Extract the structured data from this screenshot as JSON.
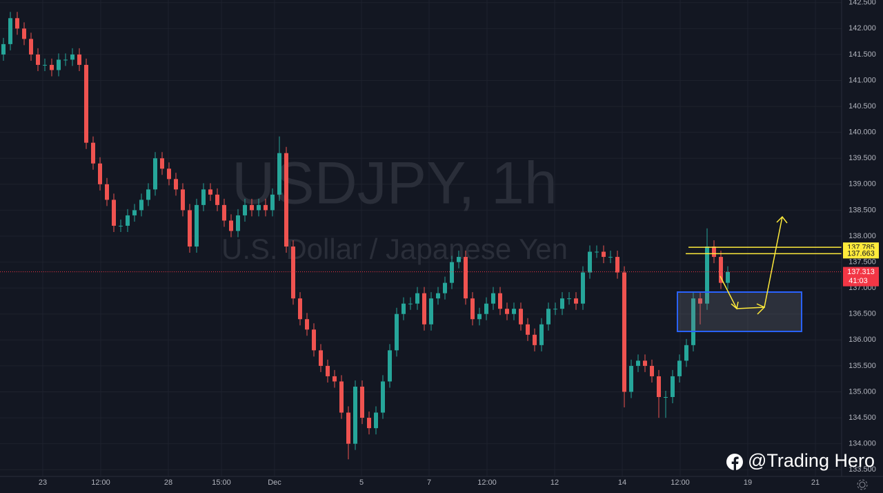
{
  "chart_data": {
    "type": "candlestick",
    "title": "USDJPY, 1h",
    "subtitle": "U.S. Dollar / Japanese Yen",
    "credit": "@Trading Hero",
    "up_color": "#26a69a",
    "down_color": "#ef5350",
    "grid": true,
    "ohlc": [
      [
        141.5,
        141.82,
        141.38,
        141.7
      ],
      [
        141.7,
        142.32,
        141.58,
        142.2
      ],
      [
        142.2,
        142.32,
        141.88,
        142.0
      ],
      [
        142.0,
        142.12,
        141.68,
        141.8
      ],
      [
        141.8,
        141.92,
        141.38,
        141.5
      ],
      [
        141.5,
        141.62,
        141.18,
        141.3
      ],
      [
        141.3,
        141.42,
        141.18,
        141.3
      ],
      [
        141.3,
        141.42,
        141.08,
        141.2
      ],
      [
        141.2,
        141.52,
        141.08,
        141.4
      ],
      [
        141.4,
        141.52,
        141.28,
        141.4
      ],
      [
        141.4,
        141.62,
        141.28,
        141.5
      ],
      [
        141.5,
        141.62,
        141.18,
        141.3
      ],
      [
        141.3,
        141.42,
        139.68,
        139.8
      ],
      [
        139.8,
        139.92,
        139.28,
        139.4
      ],
      [
        139.4,
        139.52,
        138.88,
        139.0
      ],
      [
        139.0,
        139.12,
        138.58,
        138.7
      ],
      [
        138.7,
        138.82,
        138.08,
        138.2
      ],
      [
        138.2,
        138.32,
        138.08,
        138.2
      ],
      [
        138.2,
        138.52,
        138.08,
        138.4
      ],
      [
        138.4,
        138.62,
        138.28,
        138.5
      ],
      [
        138.5,
        138.82,
        138.38,
        138.7
      ],
      [
        138.7,
        139.02,
        138.58,
        138.9
      ],
      [
        138.9,
        139.62,
        138.78,
        139.5
      ],
      [
        139.5,
        139.62,
        139.18,
        139.3
      ],
      [
        139.3,
        139.42,
        138.98,
        139.1
      ],
      [
        139.1,
        139.22,
        138.78,
        138.9
      ],
      [
        138.9,
        139.02,
        138.38,
        138.5
      ],
      [
        138.5,
        138.62,
        137.68,
        137.8
      ],
      [
        137.8,
        138.72,
        137.68,
        138.6
      ],
      [
        138.6,
        139.02,
        138.48,
        138.9
      ],
      [
        138.9,
        139.02,
        138.68,
        138.8
      ],
      [
        138.8,
        138.92,
        138.48,
        138.6
      ],
      [
        138.6,
        138.72,
        138.18,
        138.3
      ],
      [
        138.3,
        138.42,
        137.98,
        138.1
      ],
      [
        138.1,
        138.52,
        137.98,
        138.4
      ],
      [
        138.4,
        138.72,
        138.28,
        138.6
      ],
      [
        138.6,
        138.72,
        138.38,
        138.5
      ],
      [
        138.5,
        138.72,
        138.38,
        138.6
      ],
      [
        138.6,
        138.72,
        138.38,
        138.5
      ],
      [
        138.5,
        138.92,
        138.38,
        138.8
      ],
      [
        138.8,
        139.92,
        138.68,
        139.6
      ],
      [
        139.6,
        139.72,
        137.68,
        137.8
      ],
      [
        137.8,
        137.92,
        136.68,
        136.8
      ],
      [
        136.8,
        136.92,
        136.28,
        136.4
      ],
      [
        136.4,
        136.52,
        136.08,
        136.2
      ],
      [
        136.2,
        136.32,
        135.68,
        135.8
      ],
      [
        135.8,
        135.92,
        135.38,
        135.5
      ],
      [
        135.5,
        135.62,
        135.18,
        135.3
      ],
      [
        135.3,
        135.42,
        135.08,
        135.2
      ],
      [
        135.2,
        135.32,
        134.48,
        134.6
      ],
      [
        134.6,
        134.72,
        133.7,
        134.0
      ],
      [
        134.0,
        135.22,
        133.88,
        135.1
      ],
      [
        135.1,
        135.22,
        134.38,
        134.5
      ],
      [
        134.5,
        134.62,
        134.18,
        134.3
      ],
      [
        134.3,
        134.72,
        134.18,
        134.6
      ],
      [
        134.6,
        135.32,
        134.48,
        135.2
      ],
      [
        135.2,
        135.92,
        135.08,
        135.8
      ],
      [
        135.8,
        136.62,
        135.68,
        136.5
      ],
      [
        136.5,
        136.82,
        136.38,
        136.7
      ],
      [
        136.7,
        136.82,
        136.58,
        136.7
      ],
      [
        136.7,
        137.02,
        136.58,
        136.9
      ],
      [
        136.9,
        137.02,
        136.18,
        136.3
      ],
      [
        136.3,
        136.92,
        136.18,
        136.8
      ],
      [
        136.8,
        137.02,
        136.68,
        136.9
      ],
      [
        136.9,
        137.22,
        136.78,
        137.1
      ],
      [
        137.1,
        137.62,
        136.98,
        137.5
      ],
      [
        137.5,
        137.72,
        137.38,
        137.6
      ],
      [
        137.6,
        137.72,
        136.68,
        136.8
      ],
      [
        136.8,
        136.92,
        136.28,
        136.4
      ],
      [
        136.4,
        136.62,
        136.28,
        136.5
      ],
      [
        136.5,
        136.82,
        136.38,
        136.7
      ],
      [
        136.7,
        137.02,
        136.58,
        136.9
      ],
      [
        136.9,
        137.02,
        136.48,
        136.6
      ],
      [
        136.6,
        136.72,
        136.38,
        136.5
      ],
      [
        136.5,
        136.72,
        136.38,
        136.6
      ],
      [
        136.6,
        136.72,
        136.18,
        136.3
      ],
      [
        136.3,
        136.42,
        135.98,
        136.1
      ],
      [
        136.1,
        136.22,
        135.78,
        135.9
      ],
      [
        135.9,
        136.42,
        135.78,
        136.3
      ],
      [
        136.3,
        136.72,
        136.18,
        136.6
      ],
      [
        136.6,
        136.72,
        136.48,
        136.6
      ],
      [
        136.6,
        136.92,
        136.48,
        136.8
      ],
      [
        136.8,
        136.92,
        136.68,
        136.8
      ],
      [
        136.8,
        136.92,
        136.58,
        136.7
      ],
      [
        136.7,
        137.42,
        136.58,
        137.3
      ],
      [
        137.3,
        137.82,
        137.18,
        137.7
      ],
      [
        137.7,
        137.82,
        137.58,
        137.7
      ],
      [
        137.7,
        137.82,
        137.48,
        137.6
      ],
      [
        137.6,
        137.72,
        137.48,
        137.6
      ],
      [
        137.6,
        137.72,
        137.18,
        137.3
      ],
      [
        137.3,
        137.42,
        134.7,
        135.0
      ],
      [
        135.0,
        135.62,
        134.88,
        135.5
      ],
      [
        135.5,
        135.72,
        135.38,
        135.6
      ],
      [
        135.6,
        135.72,
        135.38,
        135.5
      ],
      [
        135.5,
        135.62,
        135.18,
        135.3
      ],
      [
        135.3,
        135.42,
        134.5,
        134.9
      ],
      [
        134.9,
        135.02,
        134.5,
        134.9
      ],
      [
        134.9,
        135.42,
        134.78,
        135.3
      ],
      [
        135.3,
        135.72,
        135.18,
        135.6
      ],
      [
        135.6,
        136.02,
        135.48,
        135.9
      ],
      [
        135.9,
        136.92,
        135.78,
        136.8
      ],
      [
        136.8,
        136.92,
        136.3,
        136.7
      ],
      [
        136.7,
        138.15,
        136.58,
        137.8
      ],
      [
        137.8,
        137.92,
        137.48,
        137.6
      ],
      [
        137.6,
        137.72,
        136.98,
        137.1
      ],
      [
        137.1,
        137.42,
        136.98,
        137.31
      ]
    ],
    "xlim": [
      -0.5,
      121.5
    ],
    "xticks": [
      {
        "value": 5.7,
        "label": "23"
      },
      {
        "value": 14.1,
        "label": "12:00"
      },
      {
        "value": 23.9,
        "label": "28"
      },
      {
        "value": 31.6,
        "label": "15:00"
      },
      {
        "value": 39.3,
        "label": "Dec"
      },
      {
        "value": 51.9,
        "label": "5"
      },
      {
        "value": 61.7,
        "label": "7"
      },
      {
        "value": 70.1,
        "label": "12:00"
      },
      {
        "value": 79.9,
        "label": "12"
      },
      {
        "value": 89.7,
        "label": "14"
      },
      {
        "value": 98.1,
        "label": "12:00"
      },
      {
        "value": 107.9,
        "label": "19"
      },
      {
        "value": 117.7,
        "label": "21"
      }
    ],
    "ylim": [
      133.37,
      142.55
    ],
    "yticks": [
      {
        "value": 133.5,
        "label": "133.500"
      },
      {
        "value": 134.0,
        "label": "134.000"
      },
      {
        "value": 134.5,
        "label": "134.500"
      },
      {
        "value": 135.0,
        "label": "135.000"
      },
      {
        "value": 135.5,
        "label": "135.500"
      },
      {
        "value": 136.0,
        "label": "136.000"
      },
      {
        "value": 136.5,
        "label": "136.500"
      },
      {
        "value": 137.0,
        "label": "137.000"
      },
      {
        "value": 137.5,
        "label": "137.500"
      },
      {
        "value": 138.0,
        "label": "138.000"
      },
      {
        "value": 138.5,
        "label": "138.500"
      },
      {
        "value": 139.0,
        "label": "139.000"
      },
      {
        "value": 139.5,
        "label": "139.500"
      },
      {
        "value": 140.0,
        "label": "140.000"
      },
      {
        "value": 140.5,
        "label": "140.500"
      },
      {
        "value": 141.0,
        "label": "141.000"
      },
      {
        "value": 141.5,
        "label": "141.500"
      },
      {
        "value": 142.0,
        "label": "142.000"
      },
      {
        "value": 142.5,
        "label": "142.500"
      }
    ],
    "price_lines": [
      {
        "value": 137.785,
        "label": "137.785",
        "color": "#ffeb3b"
      },
      {
        "value": 137.663,
        "label": "137.663",
        "color": "#ffeb3b"
      }
    ],
    "last_price": {
      "value": 137.313,
      "label": "137.313",
      "countdown": "41:03",
      "color": "#f23645"
    }
  }
}
